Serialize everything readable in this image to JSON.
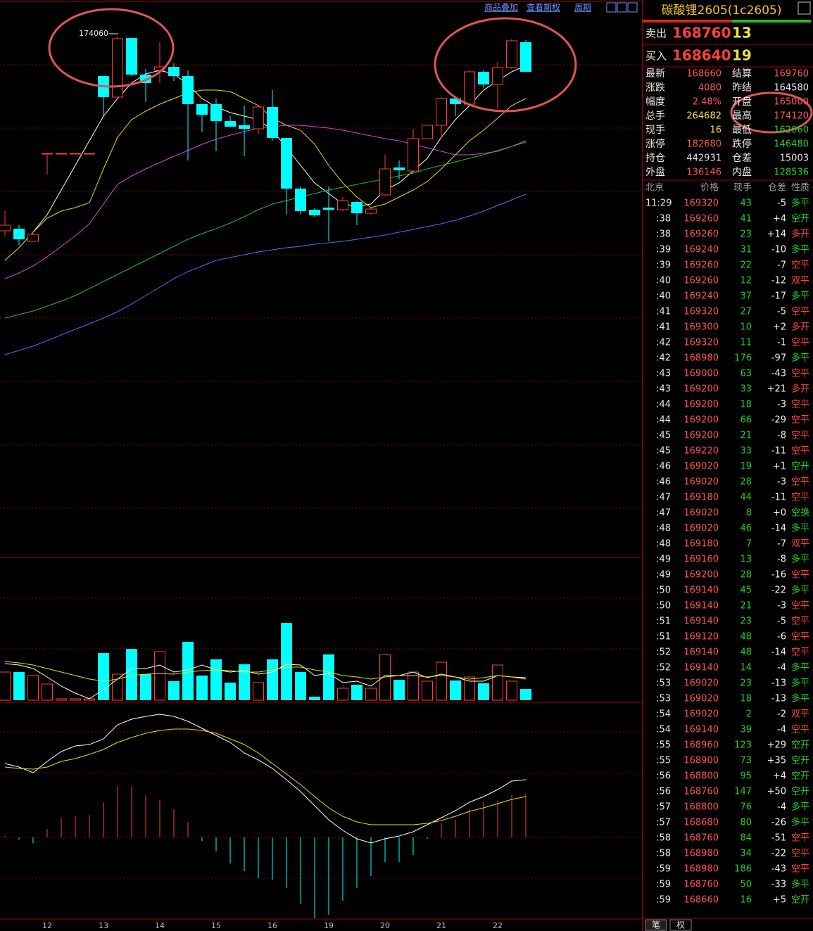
{
  "toolbar": {
    "items": [
      "商品叠加",
      "查看期权",
      "周期"
    ]
  },
  "chart_data": {
    "type": "candlestick",
    "categories": [
      null,
      null,
      null,
      "12",
      null,
      null,
      null,
      "13",
      null,
      null,
      null,
      "14",
      null,
      null,
      null,
      "15",
      null,
      null,
      null,
      "16",
      null,
      null,
      null,
      "19",
      null,
      null,
      null,
      "20",
      null,
      null,
      null,
      "21",
      null,
      null,
      null,
      "22",
      null,
      null
    ],
    "open": [
      146060,
      146360,
      144560,
      157060,
      157060,
      157060,
      157060,
      168060,
      165060,
      173460,
      168260,
      168860,
      169360,
      168060,
      164060,
      164060,
      161660,
      161060,
      160560,
      163660,
      159260,
      152060,
      149060,
      149360,
      149060,
      150160,
      148560,
      151160,
      155060,
      154560,
      159160,
      161060,
      164860,
      164060,
      168660,
      166860,
      169260,
      172860
    ],
    "close": [
      146860,
      144860,
      145560,
      157060,
      157060,
      157060,
      157060,
      165060,
      173360,
      168260,
      167060,
      169360,
      168060,
      164060,
      162560,
      161660,
      160860,
      160560,
      163660,
      159260,
      152060,
      148860,
      148260,
      149060,
      150360,
      148560,
      149160,
      154860,
      154660,
      159160,
      161060,
      164860,
      164060,
      168660,
      166860,
      169260,
      173060,
      168660
    ],
    "high": [
      148860,
      146860,
      146060,
      157060,
      157060,
      157060,
      157060,
      168060,
      173660,
      173460,
      169060,
      172860,
      169860,
      168860,
      164060,
      164860,
      162360,
      163860,
      163660,
      166060,
      159260,
      152360,
      149360,
      152360,
      150860,
      150360,
      149360,
      156860,
      156060,
      160560,
      161060,
      165060,
      165060,
      168860,
      168860,
      170060,
      173360,
      173160
    ],
    "low": [
      145360,
      144060,
      144560,
      154060,
      157060,
      157060,
      157060,
      162360,
      165060,
      168060,
      164360,
      167060,
      167360,
      156060,
      160060,
      157360,
      160860,
      156660,
      159860,
      158860,
      148360,
      148360,
      148060,
      144560,
      148860,
      146860,
      148360,
      151060,
      153360,
      154360,
      159160,
      159360,
      162360,
      163860,
      166360,
      163360,
      169060,
      168660
    ],
    "ylim": [
      99860,
      178860
    ],
    "up_color": "#ff3c3c",
    "down_color": "#00ffff",
    "annotation": 174060,
    "ma": [
      {
        "color": "#ffffff",
        "values": [
          null,
          null,
          145860,
          148360,
          151860,
          155360,
          158860,
          162360,
          164860,
          167060,
          168360,
          168860,
          168360,
          166860,
          164860,
          163660,
          162860,
          162360,
          161860,
          160360,
          157860,
          155360,
          152860,
          151360,
          149860,
          149560,
          149860,
          151860,
          152860,
          154560,
          156360,
          159360,
          161860,
          163860,
          166060,
          167360,
          168660,
          169560
        ]
      },
      {
        "color": "#e8e000",
        "values": [
          141860,
          143660,
          145860,
          147860,
          148860,
          149360,
          150060,
          154860,
          159360,
          161860,
          163060,
          164060,
          164860,
          165660,
          166060,
          166060,
          165860,
          164860,
          163860,
          162060,
          161060,
          160360,
          158360,
          155360,
          152860,
          150860,
          149360,
          149860,
          150860,
          151860,
          153060,
          154860,
          156860,
          158860,
          160360,
          162060,
          163860,
          164860
        ]
      },
      {
        "color": "#e040e0",
        "values": [
          139260,
          140060,
          141060,
          142360,
          143860,
          145360,
          147060,
          149860,
          152660,
          153860,
          154860,
          155760,
          156660,
          157460,
          158360,
          159060,
          159660,
          160160,
          160660,
          160860,
          161060,
          161060,
          160860,
          160660,
          160360,
          159960,
          159560,
          159160,
          158860,
          158360,
          157860,
          157360,
          156860,
          156860,
          157060,
          157360,
          158060,
          158860
        ]
      },
      {
        "color": "#20c020",
        "values": [
          133660,
          134160,
          134660,
          135360,
          136060,
          136860,
          137860,
          138860,
          139860,
          140860,
          141860,
          142860,
          143860,
          144860,
          145660,
          146360,
          147160,
          148060,
          149060,
          149860,
          150360,
          150860,
          151360,
          151860,
          152260,
          152660,
          153060,
          153460,
          153860,
          154260,
          154860,
          155360,
          155860,
          156360,
          156860,
          157460,
          158060,
          158660
        ]
      },
      {
        "color": "#6464ff",
        "values": [
          128460,
          129060,
          129660,
          130460,
          131260,
          132060,
          132860,
          133660,
          134560,
          135660,
          136860,
          138060,
          139260,
          140260,
          141060,
          141860,
          142260,
          142660,
          143060,
          143360,
          143660,
          143860,
          144160,
          144360,
          144560,
          144860,
          145160,
          145460,
          145860,
          146260,
          146660,
          147060,
          147560,
          148160,
          148860,
          149660,
          150460,
          151260
        ]
      }
    ],
    "volume": {
      "ylim": [
        0,
        20300
      ],
      "values": [
        4000,
        4000,
        3500,
        2300,
        200,
        200,
        200,
        6700,
        3700,
        7300,
        3700,
        6900,
        2700,
        8300,
        3500,
        5800,
        2500,
        5100,
        2500,
        5800,
        11000,
        4000,
        500,
        6500,
        1700,
        2200,
        1700,
        6500,
        2900,
        4000,
        2700,
        5400,
        2800,
        3300,
        2400,
        5000,
        2700,
        1600
      ],
      "ma": [
        {
          "color": "#ffffff",
          "values": [
            5200,
            5000,
            4500,
            3300,
            2000,
            1000,
            200,
            1500,
            3000,
            4500,
            4500,
            5000,
            4000,
            4300,
            5000,
            4300,
            4000,
            4200,
            3700,
            4000,
            5100,
            5000,
            3500,
            3800,
            2500,
            2700,
            2000,
            3500,
            3500,
            4000,
            3200,
            3700,
            3300,
            2700,
            2700,
            3500,
            3300,
            3200
          ]
        },
        {
          "color": "#e8e000",
          "values": [
            5500,
            5300,
            5000,
            4500,
            4000,
            3500,
            3000,
            2700,
            3000,
            3500,
            3700,
            3800,
            3700,
            4000,
            4200,
            4300,
            4200,
            4000,
            4000,
            4300,
            4700,
            4700,
            4300,
            4000,
            3500,
            3300,
            3000,
            3300,
            3500,
            3500,
            3300,
            3500,
            3300,
            3000,
            3200,
            3500,
            3300,
            3000
          ]
        }
      ]
    },
    "macd": {
      "ylim": [
        -2300,
        3840
      ],
      "hist": [
        40,
        -60,
        -160,
        240,
        540,
        600,
        640,
        1000,
        1440,
        1440,
        1200,
        1060,
        800,
        440,
        -100,
        -400,
        -740,
        -960,
        -1160,
        -1200,
        -1440,
        -1900,
        -2300,
        -2200,
        -1800,
        -1440,
        -1100,
        -700,
        -700,
        -500,
        -40,
        400,
        500,
        800,
        1000,
        1040,
        1200,
        1240
      ],
      "lines": [
        {
          "color": "#ffffff",
          "values": [
            2100,
            2000,
            1840,
            2160,
            2440,
            2600,
            2640,
            2800,
            3200,
            3360,
            3440,
            3500,
            3440,
            3300,
            3100,
            2900,
            2700,
            2400,
            2200,
            1960,
            1640,
            1300,
            900,
            500,
            200,
            -40,
            -160,
            -40,
            40,
            160,
            360,
            560,
            760,
            1000,
            1160,
            1360,
            1600,
            1640
          ]
        },
        {
          "color": "#e8e000",
          "values": [
            2000,
            1960,
            1940,
            2000,
            2160,
            2240,
            2360,
            2500,
            2700,
            2840,
            2960,
            3040,
            3080,
            3080,
            3040,
            2960,
            2800,
            2640,
            2400,
            2100,
            1800,
            1500,
            1160,
            840,
            600,
            440,
            360,
            360,
            360,
            360,
            400,
            480,
            600,
            740,
            840,
            960,
            1080,
            1160
          ]
        }
      ]
    }
  },
  "quote": {
    "title": "碳酸锂2605(1c2605)",
    "book": [
      {
        "label": "卖出",
        "price": 168760,
        "volume": 13
      },
      {
        "label": "买入",
        "price": 168640,
        "volume": 19
      }
    ],
    "stats": [
      {
        "label": "最新",
        "value": "168660",
        "color": "#ff5454"
      },
      {
        "label": "结算",
        "value": "169760",
        "color": "#ff5454"
      },
      {
        "label": "涨跌",
        "value": "4080",
        "color": "#ff5454"
      },
      {
        "label": "昨结",
        "value": "164580",
        "color": "#e8e8e8"
      },
      {
        "label": "幅度",
        "value": "2.48%",
        "color": "#ff5454"
      },
      {
        "label": "开盘",
        "value": "165000",
        "color": "#ff5454"
      },
      {
        "label": "总手",
        "value": "264682",
        "color": "#f0e040"
      },
      {
        "label": "最高",
        "value": "174120",
        "color": "#ff5454"
      },
      {
        "label": "现手",
        "value": "16",
        "color": "#f0e040"
      },
      {
        "label": "最低",
        "value": "162060",
        "color": "#20d020"
      },
      {
        "label": "涨停",
        "value": "182680",
        "color": "#ff5454"
      },
      {
        "label": "跌停",
        "value": "146480",
        "color": "#20d020"
      },
      {
        "label": "持仓",
        "value": "442931",
        "color": "#e8e8e8"
      },
      {
        "label": "仓差",
        "value": "15003",
        "color": "#e8e8e8"
      },
      {
        "label": "外盘",
        "value": "136146",
        "color": "#ff5454"
      },
      {
        "label": "内盘",
        "value": "128536",
        "color": "#20d020"
      }
    ]
  },
  "ticks": {
    "columns": [
      "北京",
      "价格",
      "现手",
      "仓差",
      "性质"
    ],
    "side_colors": {
      "多平": "#20d020",
      "空开": "#20d020",
      "空换": "#20d020",
      "多开": "#ff4040",
      "空平": "#ff4040",
      "双平": "#ff4040"
    },
    "rows": [
      [
        "11:29",
        "169320",
        "43",
        "-5",
        "多平"
      ],
      [
        ":38",
        "169260",
        "41",
        "+4",
        "空开"
      ],
      [
        ":38",
        "169260",
        "23",
        "+14",
        "多开"
      ],
      [
        ":39",
        "169240",
        "31",
        "-10",
        "多平"
      ],
      [
        ":39",
        "169260",
        "22",
        "-7",
        "空平"
      ],
      [
        ":40",
        "169260",
        "12",
        "-12",
        "双平"
      ],
      [
        ":40",
        "169240",
        "37",
        "-17",
        "多平"
      ],
      [
        ":41",
        "169320",
        "27",
        "-5",
        "空平"
      ],
      [
        ":41",
        "169300",
        "10",
        "+2",
        "多开"
      ],
      [
        ":42",
        "169320",
        "11",
        "-1",
        "空平"
      ],
      [
        ":42",
        "168980",
        "176",
        "-97",
        "多平"
      ],
      [
        ":43",
        "169000",
        "63",
        "-43",
        "空平"
      ],
      [
        ":43",
        "169200",
        "33",
        "+21",
        "多开"
      ],
      [
        ":44",
        "169200",
        "18",
        "-3",
        "空平"
      ],
      [
        ":44",
        "169200",
        "66",
        "-29",
        "空平"
      ],
      [
        ":45",
        "169200",
        "21",
        "-8",
        "空平"
      ],
      [
        ":45",
        "169220",
        "33",
        "-11",
        "空平"
      ],
      [
        ":46",
        "169020",
        "19",
        "+1",
        "空开"
      ],
      [
        ":46",
        "169020",
        "28",
        "-3",
        "空平"
      ],
      [
        ":47",
        "169180",
        "44",
        "-11",
        "空平"
      ],
      [
        ":47",
        "169020",
        "8",
        "+0",
        "空换"
      ],
      [
        ":48",
        "169020",
        "46",
        "-14",
        "多平"
      ],
      [
        ":48",
        "169180",
        "7",
        "-7",
        "双平"
      ],
      [
        ":49",
        "169160",
        "13",
        "-8",
        "多平"
      ],
      [
        ":49",
        "169200",
        "28",
        "-16",
        "空平"
      ],
      [
        ":50",
        "169140",
        "45",
        "-22",
        "多平"
      ],
      [
        ":50",
        "169140",
        "21",
        "-3",
        "空平"
      ],
      [
        ":51",
        "169140",
        "23",
        "-5",
        "空平"
      ],
      [
        ":51",
        "169120",
        "48",
        "-6",
        "空平"
      ],
      [
        ":52",
        "169140",
        "48",
        "-14",
        "空平"
      ],
      [
        ":52",
        "169140",
        "14",
        "-4",
        "多平"
      ],
      [
        ":53",
        "169020",
        "23",
        "-13",
        "多平"
      ],
      [
        ":53",
        "169020",
        "18",
        "-13",
        "多平"
      ],
      [
        ":54",
        "169020",
        "2",
        "-2",
        "双平"
      ],
      [
        ":54",
        "169140",
        "39",
        "-4",
        "空平"
      ],
      [
        ":55",
        "168960",
        "123",
        "+29",
        "空开"
      ],
      [
        ":55",
        "168900",
        "73",
        "+35",
        "空开"
      ],
      [
        ":56",
        "168800",
        "95",
        "+4",
        "空开"
      ],
      [
        ":56",
        "168760",
        "147",
        "+50",
        "空开"
      ],
      [
        ":57",
        "168800",
        "76",
        "-4",
        "多平"
      ],
      [
        ":57",
        "168680",
        "80",
        "-26",
        "多平"
      ],
      [
        ":58",
        "168760",
        "84",
        "-51",
        "空平"
      ],
      [
        ":58",
        "168980",
        "34",
        "-22",
        "空平"
      ],
      [
        ":59",
        "168980",
        "186",
        "-43",
        "空平"
      ],
      [
        ":59",
        "168760",
        "50",
        "-33",
        "多平"
      ],
      [
        ":59",
        "168660",
        "16",
        "+5",
        "空开"
      ]
    ]
  },
  "tabs": [
    "笔",
    "权"
  ]
}
